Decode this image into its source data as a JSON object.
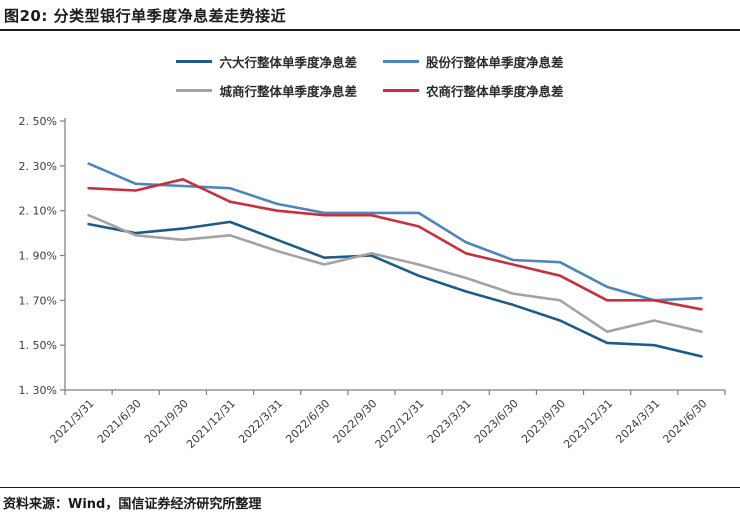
{
  "title": "图20: 分类型银行单季度净息差走势接近",
  "source_note": "资料来源：Wind，国信证券经济研究所整理",
  "chart_data": {
    "type": "line",
    "title": "分类型银行单季度净息差走势接近",
    "unit": "%",
    "categories": [
      "2021/3/31",
      "2021/6/30",
      "2021/9/30",
      "2021/12/31",
      "2022/3/31",
      "2022/6/30",
      "2022/9/30",
      "2022/12/31",
      "2023/3/31",
      "2023/6/30",
      "2023/9/30",
      "2023/12/31",
      "2024/3/31",
      "2024/6/30"
    ],
    "series": [
      {
        "name": "六大行整体单季度净息差",
        "color": "#1f5c85",
        "values": [
          2.04,
          2.0,
          2.02,
          2.05,
          1.97,
          1.89,
          1.9,
          1.81,
          1.74,
          1.68,
          1.61,
          1.51,
          1.5,
          1.45
        ]
      },
      {
        "name": "股份行整体单季度净息差",
        "color": "#4c86ba",
        "values": [
          2.31,
          2.22,
          2.21,
          2.2,
          2.13,
          2.09,
          2.09,
          2.09,
          1.96,
          1.88,
          1.87,
          1.76,
          1.7,
          1.71
        ]
      },
      {
        "name": "城商行整体单季度净息差",
        "color": "#a3a3a3",
        "values": [
          2.08,
          1.99,
          1.97,
          1.99,
          1.92,
          1.86,
          1.91,
          1.86,
          1.8,
          1.73,
          1.7,
          1.56,
          1.61,
          1.56
        ]
      },
      {
        "name": "农商行整体单季度净息差",
        "color": "#c5313f",
        "values": [
          2.2,
          2.19,
          2.24,
          2.14,
          2.1,
          2.08,
          2.08,
          2.03,
          1.91,
          1.86,
          1.81,
          1.7,
          1.7,
          1.66
        ]
      }
    ],
    "ylim": [
      1.3,
      2.5
    ],
    "y_ticks": [
      {
        "label": "2. 50%",
        "value": 2.5
      },
      {
        "label": "2. 30%",
        "value": 2.3
      },
      {
        "label": "2. 10%",
        "value": 2.1
      },
      {
        "label": "1. 90%",
        "value": 1.9
      },
      {
        "label": "1. 70%",
        "value": 1.7
      },
      {
        "label": "1. 50%",
        "value": 1.5
      },
      {
        "label": "1. 30%",
        "value": 1.3
      }
    ],
    "grid": false,
    "legend_position": "top"
  }
}
